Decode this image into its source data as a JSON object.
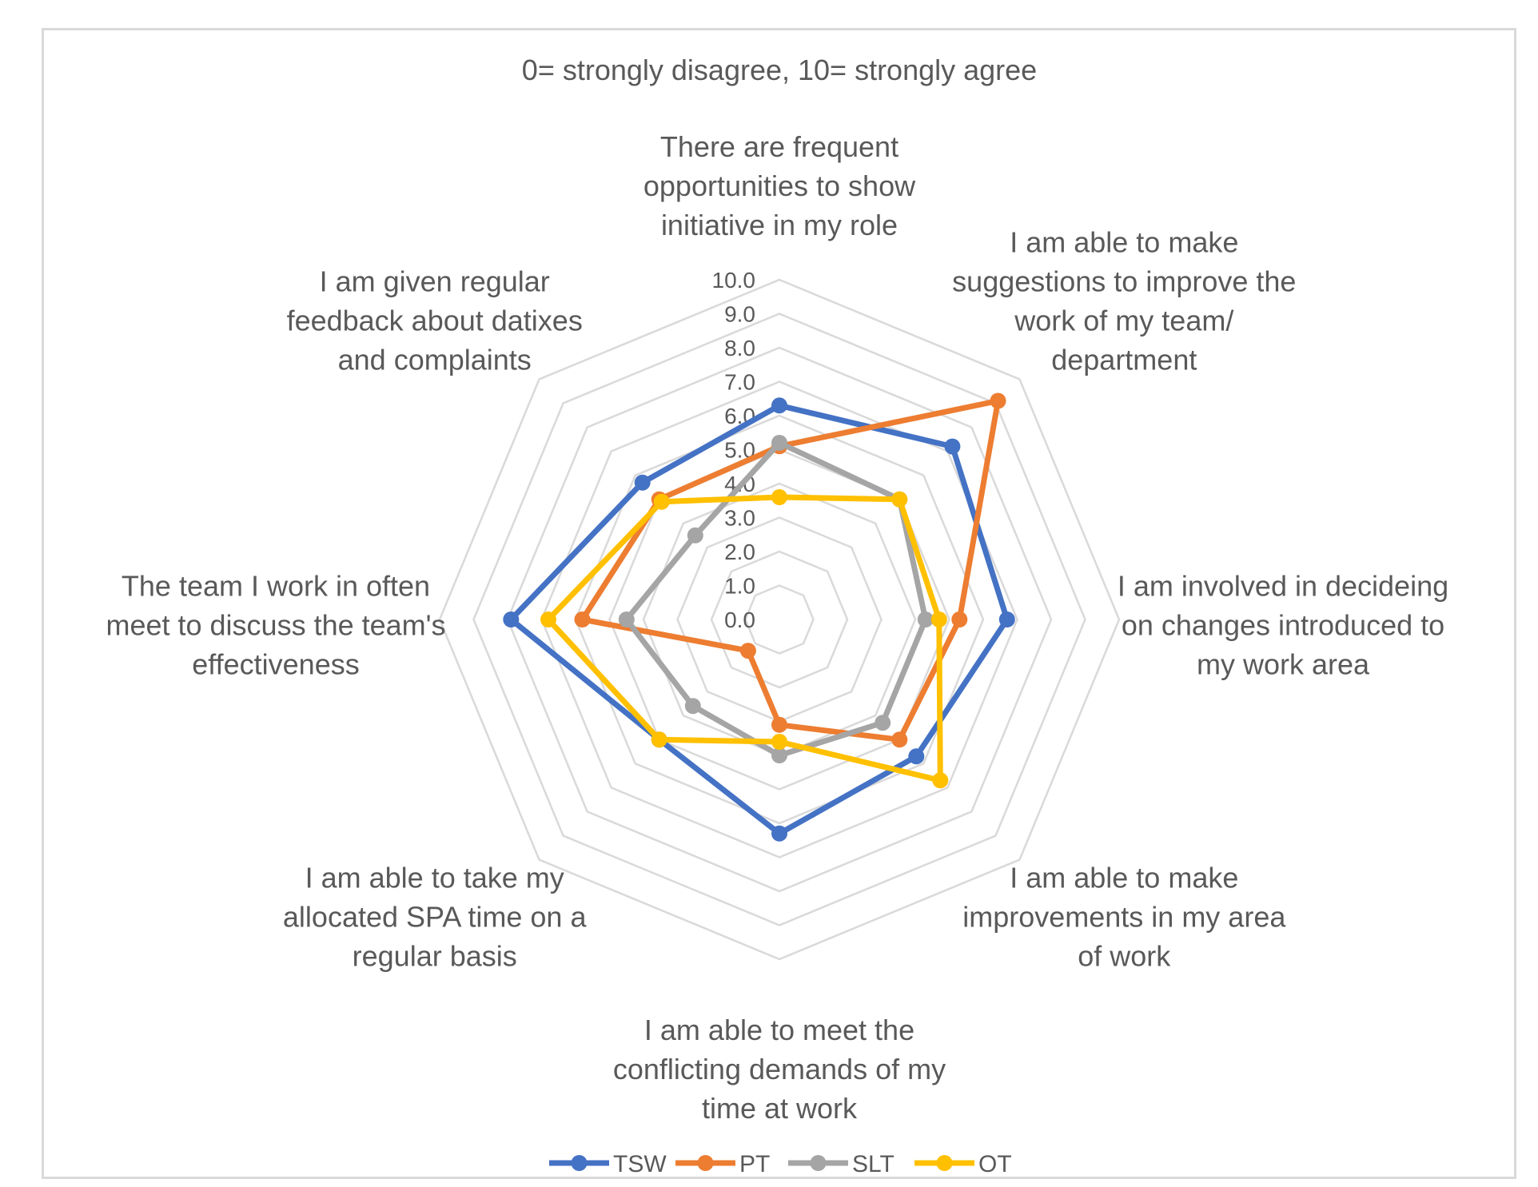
{
  "chart_data": {
    "type": "radar",
    "title": "",
    "subtitle": "0= strongly disagree, 10= strongly agree",
    "range": [
      0,
      10
    ],
    "ticks": [
      "0.0",
      "1.0",
      "2.0",
      "3.0",
      "4.0",
      "5.0",
      "6.0",
      "7.0",
      "8.0",
      "9.0",
      "10.0"
    ],
    "categories": [
      "There are frequent opportunities to show initiative in my role",
      "I am able to make suggestions to improve the work of my team/ department",
      "I am involved in decideing on changes introduced to my work area",
      "I am able to make improvements in my area of work",
      "I am able to meet the conflicting demands of my time at work",
      "I am able to take my allocated SPA time on a regular basis",
      "The team I work in often meet to discuss the team's effectiveness",
      "I am given regular feedback about datixes and complaints"
    ],
    "category_lines": [
      [
        "There are frequent",
        "opportunities to show",
        "initiative in my role"
      ],
      [
        "I am able to make",
        "suggestions to improve the",
        "work of my team/",
        "department"
      ],
      [
        "I am involved in decideing",
        "on changes introduced to",
        "my work area"
      ],
      [
        "I am able to make",
        "improvements in my area",
        "of work"
      ],
      [
        "I am able to meet the",
        "conflicting demands of my",
        "time at work"
      ],
      [
        "I am able to take my",
        "allocated SPA time on a",
        "regular basis"
      ],
      [
        "The team I work in often",
        "meet to discuss the team's",
        "effectiveness"
      ],
      [
        "I am given regular",
        "feedback about datixes",
        "and complaints"
      ]
    ],
    "series": [
      {
        "name": "TSW",
        "color": "#4472c4",
        "values": [
          6.3,
          7.2,
          6.7,
          5.7,
          6.3,
          5.0,
          7.9,
          5.7
        ]
      },
      {
        "name": "PT",
        "color": "#ed7d31",
        "values": [
          5.1,
          9.1,
          5.3,
          5.0,
          3.1,
          1.3,
          5.8,
          5.0
        ]
      },
      {
        "name": "SLT",
        "color": "#a5a5a5",
        "values": [
          5.2,
          5.0,
          4.3,
          4.3,
          4.0,
          3.6,
          4.5,
          3.5
        ]
      },
      {
        "name": "OT",
        "color": "#ffc000",
        "values": [
          3.6,
          5.0,
          4.7,
          6.7,
          3.6,
          5.0,
          6.8,
          4.9
        ]
      }
    ],
    "legend": "bottom",
    "grid": true
  }
}
